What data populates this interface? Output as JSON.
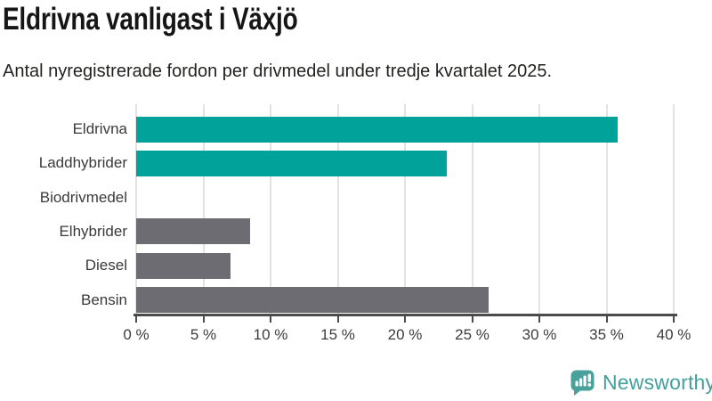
{
  "title": "Eldrivna vanligast i Växjö",
  "subtitle": "Antal nyregistrerade fordon per drivmedel under tredje kvartalet 2025.",
  "chart_data": {
    "type": "bar",
    "orientation": "horizontal",
    "title": "Eldrivna vanligast i Växjö",
    "subtitle": "Antal nyregistrerade fordon per drivmedel under tredje kvartalet 2025.",
    "categories": [
      "Eldrivna",
      "Laddhybrider",
      "Biodrivmedel",
      "Elhybrider",
      "Diesel",
      "Bensin"
    ],
    "values": [
      35.8,
      23.1,
      0,
      8.5,
      7.0,
      26.2
    ],
    "unit": "%",
    "xlim": [
      0,
      40
    ],
    "x_tick_labels": [
      "0 %",
      "5 %",
      "10 %",
      "15 %",
      "20 %",
      "25 %",
      "30 %",
      "35 %",
      "40 %"
    ],
    "grid": true,
    "legend": "none",
    "bar_colors": [
      "#00a29a",
      "#00a29a",
      "#6d6c73",
      "#6d6c73",
      "#6d6c73",
      "#6d6c73"
    ]
  },
  "colors": {
    "accent_teal": "#00a29a",
    "neutral_gray": "#6d6c73",
    "logo_teal": "#4aa19b",
    "axis": "#4b4b4b",
    "gridline": "#e2e2e2"
  },
  "branding": {
    "logo_text": "Newsworthy",
    "logo_icon": "bar-chart-speech-bubble-icon"
  }
}
